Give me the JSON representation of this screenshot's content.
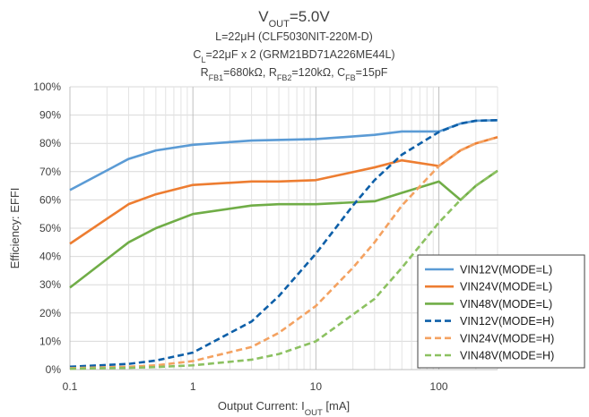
{
  "chart_data": {
    "type": "line",
    "title": {
      "main": "V",
      "main_sub": "OUT",
      "main_rest": "=5.0V"
    },
    "subtitle_lines": [
      {
        "parts": [
          {
            "t": "L=22μH (CLF5030NIT-220M-D)"
          }
        ]
      },
      {
        "parts": [
          {
            "t": "C"
          },
          {
            "t": "L",
            "sub": true
          },
          {
            "t": "=22μF x 2 (GRM21BD71A226ME44L)"
          }
        ]
      },
      {
        "parts": [
          {
            "t": "R"
          },
          {
            "t": "FB1",
            "sub": true
          },
          {
            "t": "=680kΩ, R"
          },
          {
            "t": "FB2",
            "sub": true
          },
          {
            "t": "=120kΩ, C"
          },
          {
            "t": "FB",
            "sub": true
          },
          {
            "t": "=15pF"
          }
        ]
      }
    ],
    "xlabel": {
      "pre": "Output Current: I",
      "sub": "OUT",
      "post": " [mA]"
    },
    "ylabel": "Efficiency: EFFI",
    "x_scale": "log",
    "xlim": [
      0.1,
      300
    ],
    "ylim": [
      0,
      100
    ],
    "x_ticks": [
      {
        "value": 0.1,
        "label": "0.1"
      },
      {
        "value": 1,
        "label": "1"
      },
      {
        "value": 10,
        "label": "10"
      },
      {
        "value": 100,
        "label": "100"
      }
    ],
    "y_ticks": [
      {
        "value": 0,
        "label": "0%"
      },
      {
        "value": 10,
        "label": "10%"
      },
      {
        "value": 20,
        "label": "20%"
      },
      {
        "value": 30,
        "label": "30%"
      },
      {
        "value": 40,
        "label": "40%"
      },
      {
        "value": 50,
        "label": "50%"
      },
      {
        "value": 60,
        "label": "60%"
      },
      {
        "value": 70,
        "label": "70%"
      },
      {
        "value": 80,
        "label": "80%"
      },
      {
        "value": 90,
        "label": "90%"
      },
      {
        "value": 100,
        "label": "100%"
      }
    ],
    "grid": true,
    "legend_position": "bottom-right",
    "series": [
      {
        "name": "VIN12V(MODE=L)",
        "color": "#5b9bd5",
        "dash": "solid",
        "points": [
          [
            0.1,
            63.5
          ],
          [
            0.3,
            74.5
          ],
          [
            0.5,
            77.5
          ],
          [
            1,
            79.5
          ],
          [
            3,
            81
          ],
          [
            10,
            81.5
          ],
          [
            30,
            83
          ],
          [
            50,
            84.2
          ],
          [
            100,
            84.2
          ],
          [
            150,
            87
          ],
          [
            200,
            88
          ],
          [
            300,
            88.2
          ]
        ]
      },
      {
        "name": "VIN24V(MODE=L)",
        "color": "#ed7d31",
        "dash": "solid",
        "points": [
          [
            0.1,
            44.5
          ],
          [
            0.3,
            58.5
          ],
          [
            0.5,
            62
          ],
          [
            1,
            65.3
          ],
          [
            3,
            66.5
          ],
          [
            5,
            66.5
          ],
          [
            10,
            67
          ],
          [
            30,
            71.5
          ],
          [
            50,
            74
          ],
          [
            100,
            72
          ],
          [
            150,
            77.5
          ],
          [
            200,
            80
          ],
          [
            300,
            82.2
          ]
        ]
      },
      {
        "name": "VIN48V(MODE=L)",
        "color": "#70ad47",
        "dash": "solid",
        "points": [
          [
            0.1,
            29
          ],
          [
            0.3,
            45
          ],
          [
            0.5,
            50
          ],
          [
            1,
            55
          ],
          [
            3,
            58
          ],
          [
            5,
            58.5
          ],
          [
            10,
            58.5
          ],
          [
            30,
            59.5
          ],
          [
            50,
            62.5
          ],
          [
            100,
            66.5
          ],
          [
            150,
            60
          ],
          [
            200,
            65
          ],
          [
            300,
            70.3
          ]
        ]
      },
      {
        "name": "VIN12V(MODE=H)",
        "color": "#0d5fa8",
        "dash": "dashed",
        "points": [
          [
            0.1,
            1
          ],
          [
            0.3,
            2
          ],
          [
            0.5,
            3.2
          ],
          [
            1,
            6
          ],
          [
            3,
            17
          ],
          [
            5,
            26
          ],
          [
            10,
            41
          ],
          [
            20,
            58
          ],
          [
            30,
            67
          ],
          [
            50,
            76
          ],
          [
            100,
            84
          ],
          [
            150,
            87
          ],
          [
            200,
            88
          ],
          [
            300,
            88.2
          ]
        ]
      },
      {
        "name": "VIN24V(MODE=H)",
        "color": "#f4a261",
        "dash": "dashed",
        "points": [
          [
            0.1,
            0.5
          ],
          [
            0.3,
            1
          ],
          [
            0.5,
            1.5
          ],
          [
            1,
            3
          ],
          [
            3,
            8
          ],
          [
            5,
            13
          ],
          [
            10,
            22.5
          ],
          [
            20,
            36
          ],
          [
            30,
            45
          ],
          [
            50,
            58
          ],
          [
            100,
            72
          ],
          [
            150,
            77.5
          ],
          [
            200,
            80
          ],
          [
            300,
            82.2
          ]
        ]
      },
      {
        "name": "VIN48V(MODE=H)",
        "color": "#8cc161",
        "dash": "dashed",
        "points": [
          [
            0.1,
            0.3
          ],
          [
            0.3,
            0.6
          ],
          [
            0.5,
            0.9
          ],
          [
            1,
            1.5
          ],
          [
            3,
            3.5
          ],
          [
            5,
            5.5
          ],
          [
            10,
            10
          ],
          [
            30,
            25
          ],
          [
            50,
            36
          ],
          [
            100,
            52
          ],
          [
            150,
            60
          ],
          [
            200,
            65
          ],
          [
            300,
            70.3
          ]
        ]
      }
    ]
  }
}
